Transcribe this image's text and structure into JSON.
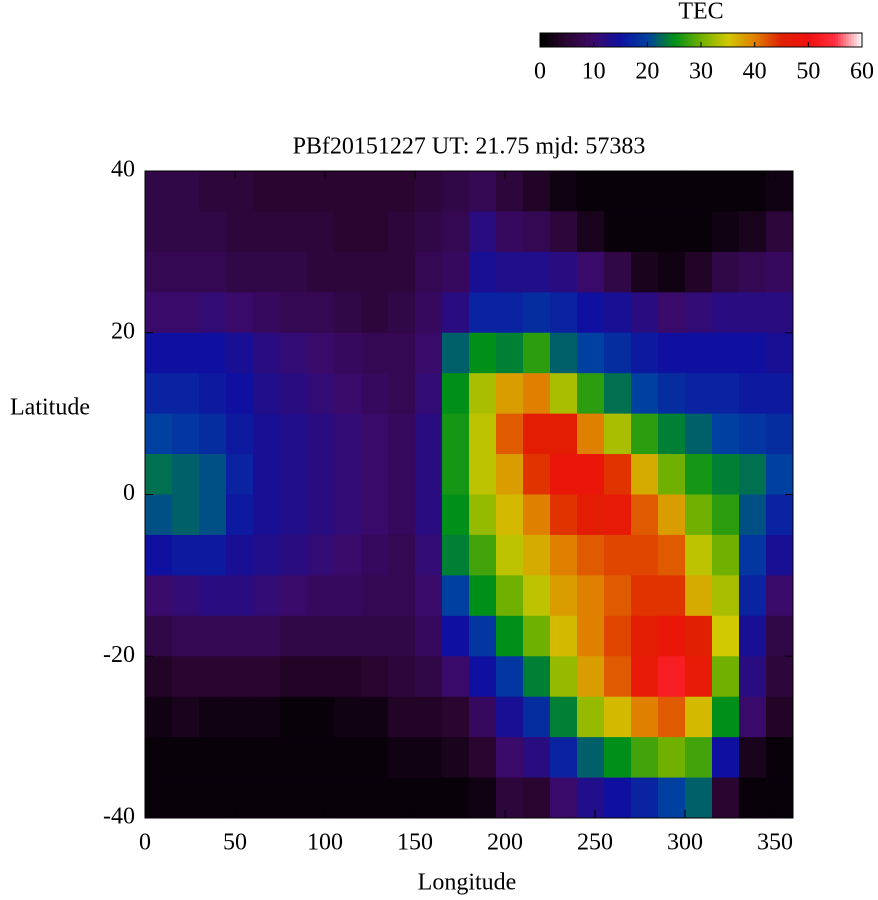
{
  "chart_data": {
    "type": "heatmap",
    "title": "PBf20151227  UT: 21.75  mjd: 57383",
    "x_label": "Longitude",
    "y_label": "Latitude",
    "colorbar_title": "TEC",
    "xlim": [
      0,
      360
    ],
    "xticks": [
      0,
      50,
      100,
      150,
      200,
      250,
      300,
      350
    ],
    "ylim": [
      -40,
      40
    ],
    "yticks": [
      -40,
      -20,
      0,
      20,
      40
    ],
    "zlim": [
      0,
      60
    ],
    "zticks": [
      0,
      10,
      20,
      30,
      40,
      50,
      60
    ],
    "colormap": [
      "#000000",
      "#2a0530",
      "#3a0a6a",
      "#1010a0",
      "#0040a0",
      "#00901a",
      "#70b000",
      "#d0c800",
      "#e08000",
      "#e02000",
      "#f01010",
      "#ff3040",
      "#ffffff"
    ],
    "x": [
      7.5,
      22.5,
      37.5,
      52.5,
      67.5,
      82.5,
      97.5,
      112.5,
      127.5,
      142.5,
      157.5,
      172.5,
      187.5,
      202.5,
      217.5,
      232.5,
      247.5,
      262.5,
      277.5,
      292.5,
      307.5,
      322.5,
      337.5,
      352.5
    ],
    "y": [
      37.5,
      32.5,
      27.5,
      22.5,
      17.5,
      12.5,
      7.5,
      2.5,
      -2.5,
      -7.5,
      -12.5,
      -17.5,
      -22.5,
      -27.5,
      -32.5,
      -37.5
    ],
    "z": [
      [
        7,
        7,
        6,
        6,
        5,
        5,
        5,
        5,
        5,
        5,
        6,
        7,
        8,
        6,
        4,
        2,
        1,
        1,
        1,
        1,
        1,
        1,
        1,
        2
      ],
      [
        7,
        7,
        7,
        6,
        6,
        6,
        6,
        5,
        5,
        6,
        7,
        8,
        12,
        9,
        8,
        6,
        3,
        1,
        1,
        1,
        1,
        2,
        3,
        6
      ],
      [
        8,
        8,
        8,
        7,
        7,
        7,
        6,
        6,
        6,
        6,
        8,
        9,
        14,
        13,
        13,
        12,
        10,
        7,
        3,
        2,
        4,
        7,
        8,
        9
      ],
      [
        10,
        10,
        11,
        10,
        9,
        8,
        8,
        7,
        6,
        7,
        9,
        12,
        17,
        17,
        18,
        17,
        15,
        14,
        12,
        10,
        11,
        12,
        12,
        12
      ],
      [
        15,
        15,
        15,
        14,
        12,
        11,
        10,
        9,
        8,
        8,
        10,
        22,
        25,
        24,
        27,
        22,
        20,
        18,
        16,
        15,
        15,
        15,
        15,
        14
      ],
      [
        17,
        17,
        16,
        15,
        13,
        12,
        11,
        10,
        9,
        8,
        11,
        25,
        33,
        38,
        40,
        33,
        27,
        23,
        20,
        18,
        17,
        17,
        16,
        16
      ],
      [
        20,
        19,
        18,
        16,
        14,
        13,
        12,
        11,
        10,
        9,
        12,
        26,
        34,
        42,
        46,
        46,
        40,
        33,
        27,
        24,
        22,
        20,
        19,
        18
      ],
      [
        23,
        22,
        21,
        17,
        14,
        13,
        12,
        11,
        10,
        9,
        12,
        26,
        34,
        38,
        44,
        48,
        48,
        44,
        37,
        30,
        26,
        24,
        23,
        20
      ],
      [
        21,
        22,
        21,
        16,
        14,
        13,
        12,
        11,
        10,
        9,
        12,
        25,
        32,
        36,
        40,
        44,
        46,
        47,
        42,
        38,
        30,
        27,
        21,
        17
      ],
      [
        15,
        16,
        16,
        14,
        13,
        12,
        11,
        10,
        9,
        8,
        11,
        24,
        28,
        34,
        37,
        40,
        42,
        43,
        43,
        42,
        34,
        30,
        19,
        14
      ],
      [
        10,
        11,
        12,
        12,
        11,
        10,
        9,
        9,
        8,
        8,
        10,
        20,
        25,
        30,
        34,
        38,
        40,
        42,
        44,
        44,
        37,
        33,
        17,
        10
      ],
      [
        7,
        8,
        8,
        8,
        8,
        7,
        7,
        7,
        7,
        7,
        9,
        15,
        19,
        25,
        30,
        36,
        40,
        43,
        46,
        48,
        45,
        35,
        14,
        7
      ],
      [
        4,
        5,
        5,
        5,
        5,
        4,
        4,
        4,
        5,
        6,
        7,
        10,
        15,
        19,
        24,
        32,
        38,
        42,
        47,
        52,
        47,
        30,
        12,
        6
      ],
      [
        2,
        3,
        2,
        2,
        2,
        1,
        1,
        2,
        2,
        4,
        4,
        5,
        9,
        14,
        18,
        24,
        32,
        36,
        40,
        42,
        36,
        25,
        10,
        4
      ],
      [
        1,
        1,
        1,
        1,
        1,
        1,
        1,
        1,
        1,
        2,
        2,
        3,
        5,
        10,
        12,
        17,
        22,
        25,
        28,
        30,
        28,
        15,
        3,
        1
      ],
      [
        1,
        1,
        1,
        1,
        1,
        1,
        1,
        1,
        1,
        1,
        1,
        1,
        2,
        6,
        5,
        10,
        13,
        15,
        17,
        20,
        22,
        5,
        1,
        1
      ]
    ]
  }
}
